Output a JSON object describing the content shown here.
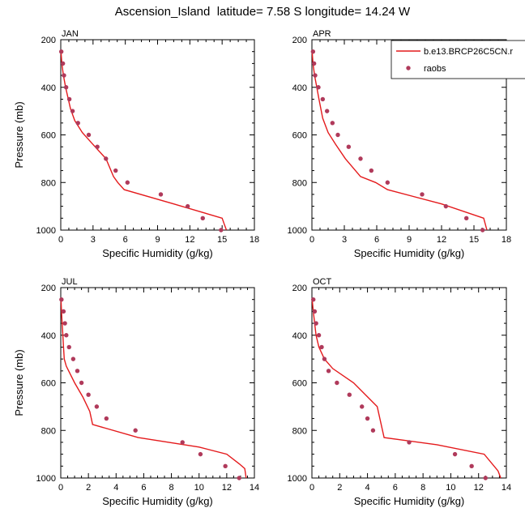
{
  "figure_title": "Ascension_Island  latitude= 7.58 S longitude= 14.24 W",
  "colors": {
    "model": "#e41a1c",
    "obs": "#b03a5b",
    "axis": "#000000"
  },
  "legend": {
    "model_label": "b.e13.BRCP26C5CN.r",
    "obs_label": "raobs",
    "placement": "top-right of APR panel"
  },
  "chart_data": [
    {
      "type": "line",
      "panel": "JAN",
      "title": "JAN",
      "xlabel": "Specific Humidity (g/kg)",
      "ylabel": "Pressure (mb)",
      "xlim": [
        0,
        18
      ],
      "ylim": [
        1000,
        200
      ],
      "y_reversed": true,
      "xticks": [
        0,
        3,
        6,
        9,
        12,
        15,
        18
      ],
      "yticks": [
        200,
        400,
        600,
        800,
        1000
      ],
      "series": [
        {
          "name": "b.e13.BRCP26C5CN.r",
          "style": "line",
          "x": [
            0.02,
            0.1,
            0.25,
            0.45,
            0.7,
            0.9,
            1.3,
            2.0,
            3.0,
            4.2,
            4.9,
            5.3,
            5.9,
            10.5,
            15.0,
            15.2,
            15.4
          ],
          "y": [
            250,
            300,
            350,
            400,
            450,
            490,
            540,
            590,
            640,
            700,
            775,
            800,
            830,
            890,
            950,
            975,
            1000
          ]
        },
        {
          "name": "raobs",
          "style": "points",
          "x": [
            0.05,
            0.2,
            0.3,
            0.5,
            0.8,
            1.1,
            1.6,
            2.6,
            3.4,
            4.2,
            5.1,
            6.2,
            9.3,
            11.8,
            13.2,
            14.9
          ],
          "y": [
            250,
            300,
            350,
            400,
            450,
            500,
            550,
            600,
            650,
            700,
            750,
            800,
            850,
            900,
            950,
            1000
          ]
        }
      ]
    },
    {
      "type": "line",
      "panel": "APR",
      "title": "APR",
      "xlabel": "Specific Humidity (g/kg)",
      "ylabel": "",
      "xlim": [
        0,
        18
      ],
      "ylim": [
        1000,
        200
      ],
      "y_reversed": true,
      "xticks": [
        0,
        3,
        6,
        9,
        12,
        15,
        18
      ],
      "yticks": [
        200,
        400,
        600,
        800,
        1000
      ],
      "series": [
        {
          "name": "b.e13.BRCP26C5CN.r",
          "style": "line",
          "x": [
            0.02,
            0.1,
            0.25,
            0.45,
            0.65,
            1.0,
            1.5,
            2.2,
            3.1,
            4.5,
            5.9,
            7.0,
            12.0,
            15.9,
            16.2
          ],
          "y": [
            250,
            300,
            350,
            400,
            450,
            530,
            590,
            640,
            700,
            775,
            800,
            830,
            890,
            950,
            1000
          ]
        },
        {
          "name": "raobs",
          "style": "points",
          "x": [
            0.1,
            0.2,
            0.3,
            0.6,
            1.0,
            1.4,
            1.9,
            2.4,
            3.4,
            4.5,
            5.5,
            7.0,
            10.2,
            12.4,
            14.3,
            15.8
          ],
          "y": [
            250,
            300,
            350,
            400,
            450,
            500,
            550,
            600,
            650,
            700,
            750,
            800,
            850,
            900,
            950,
            1000
          ]
        }
      ]
    },
    {
      "type": "line",
      "panel": "JUL",
      "title": "JUL",
      "xlabel": "Specific Humidity (g/kg)",
      "ylabel": "Pressure (mb)",
      "xlim": [
        0,
        14
      ],
      "ylim": [
        1000,
        200
      ],
      "y_reversed": true,
      "xticks": [
        0,
        2,
        4,
        6,
        8,
        10,
        12,
        14
      ],
      "yticks": [
        200,
        400,
        600,
        800,
        1000
      ],
      "series": [
        {
          "name": "b.e13.BRCP26C5CN.r",
          "style": "line",
          "x": [
            0.02,
            0.05,
            0.1,
            0.15,
            0.2,
            0.25,
            0.4,
            1.0,
            1.6,
            2.1,
            2.3,
            5.6,
            10.0,
            12.0,
            12.9,
            13.3,
            13.4
          ],
          "y": [
            250,
            300,
            350,
            400,
            450,
            500,
            530,
            600,
            660,
            720,
            775,
            830,
            870,
            900,
            940,
            960,
            1000
          ]
        },
        {
          "name": "raobs",
          "style": "points",
          "x": [
            0.05,
            0.2,
            0.3,
            0.4,
            0.6,
            0.9,
            1.2,
            1.5,
            2.0,
            2.6,
            3.3,
            5.4,
            8.8,
            10.1,
            11.9,
            12.9
          ],
          "y": [
            250,
            300,
            350,
            400,
            450,
            500,
            550,
            600,
            650,
            700,
            750,
            800,
            850,
            900,
            950,
            1000
          ]
        }
      ]
    },
    {
      "type": "line",
      "panel": "OCT",
      "title": "OCT",
      "xlabel": "Specific Humidity (g/kg)",
      "ylabel": "",
      "xlim": [
        0,
        14
      ],
      "ylim": [
        1000,
        200
      ],
      "y_reversed": true,
      "xticks": [
        0,
        2,
        4,
        6,
        8,
        10,
        12,
        14
      ],
      "yticks": [
        200,
        400,
        600,
        800,
        1000
      ],
      "series": [
        {
          "name": "b.e13.BRCP26C5CN.r",
          "style": "line",
          "x": [
            0.02,
            0.1,
            0.2,
            0.3,
            0.5,
            0.9,
            1.5,
            3.0,
            4.7,
            5.2,
            9.0,
            12.4,
            13.4,
            13.6
          ],
          "y": [
            250,
            300,
            350,
            400,
            450,
            500,
            540,
            600,
            700,
            830,
            860,
            900,
            970,
            1000
          ]
        },
        {
          "name": "raobs",
          "style": "points",
          "x": [
            0.1,
            0.2,
            0.3,
            0.5,
            0.7,
            0.9,
            1.2,
            1.8,
            2.7,
            3.6,
            4.0,
            4.4,
            7.0,
            10.3,
            11.5,
            12.5
          ],
          "y": [
            250,
            300,
            350,
            400,
            450,
            500,
            550,
            600,
            650,
            700,
            750,
            800,
            850,
            900,
            950,
            1000
          ]
        }
      ]
    }
  ]
}
